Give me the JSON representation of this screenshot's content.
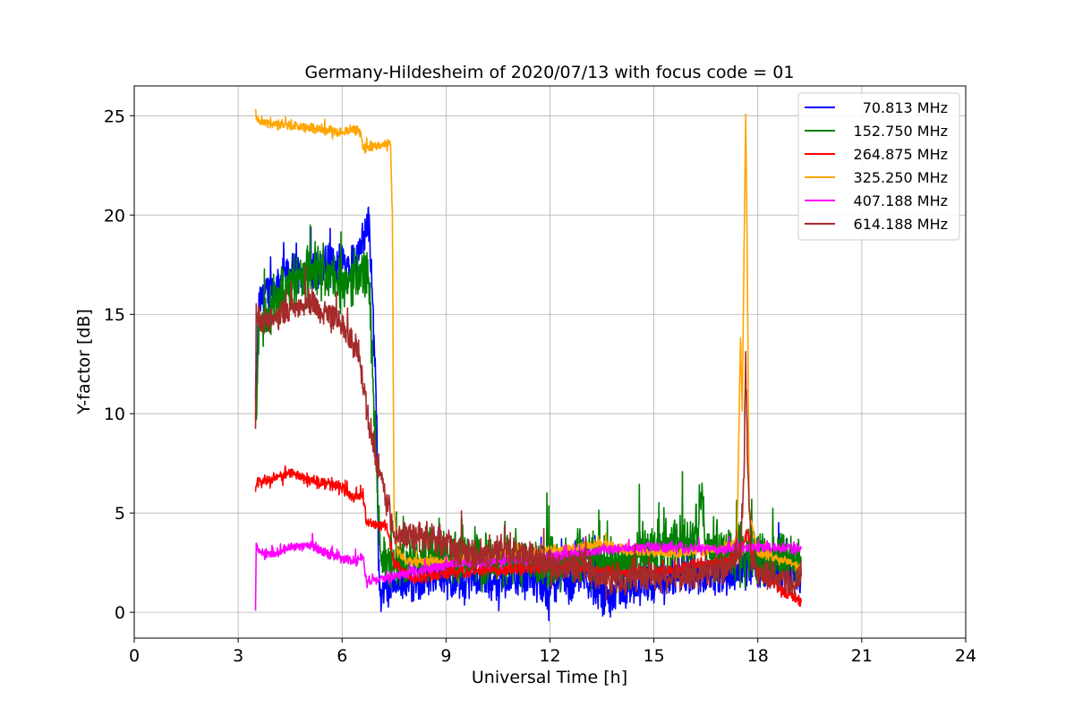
{
  "chart_data": {
    "type": "line",
    "title": "Germany-Hildesheim of 2020/07/13 with focus code = 01",
    "xlabel": "Universal Time [h]",
    "ylabel": "Y-factor [dB]",
    "xlim": [
      0,
      24
    ],
    "ylim": [
      -1.3,
      26.5
    ],
    "xticks": [
      0,
      3,
      6,
      9,
      12,
      15,
      18,
      21,
      24
    ],
    "yticks": [
      0,
      5,
      10,
      15,
      20,
      25
    ],
    "grid": true,
    "legend_position": "top-right",
    "series": [
      {
        "name": "70.813 MHz",
        "color": "#0000ff",
        "noise": 1.2,
        "points": [
          [
            3.5,
            10.5
          ],
          [
            3.6,
            15.5
          ],
          [
            4.0,
            16.5
          ],
          [
            4.5,
            17.0
          ],
          [
            5.0,
            17.2
          ],
          [
            5.5,
            17.5
          ],
          [
            6.0,
            17.5
          ],
          [
            6.5,
            18.0
          ],
          [
            6.75,
            20.0
          ],
          [
            6.9,
            15.0
          ],
          [
            7.0,
            10.0
          ],
          [
            7.05,
            2.0
          ],
          [
            7.1,
            1.0
          ],
          [
            7.5,
            1.2
          ],
          [
            8.0,
            1.5
          ],
          [
            8.5,
            1.8
          ],
          [
            9.0,
            1.8
          ],
          [
            9.5,
            1.5
          ],
          [
            10.0,
            1.5
          ],
          [
            10.5,
            1.6
          ],
          [
            11.0,
            1.7
          ],
          [
            11.5,
            1.6
          ],
          [
            12.0,
            1.3
          ],
          [
            12.5,
            1.5
          ],
          [
            13.0,
            1.8
          ],
          [
            13.3,
            1.2
          ],
          [
            13.5,
            0.8
          ],
          [
            14.0,
            1.2
          ],
          [
            15.0,
            1.5
          ],
          [
            16.0,
            1.8
          ],
          [
            17.0,
            2.0
          ],
          [
            18.0,
            2.2
          ],
          [
            19.0,
            2.0
          ],
          [
            19.25,
            1.8
          ]
        ]
      },
      {
        "name": "152.750 MHz",
        "color": "#008000",
        "noise": 1.6,
        "points": [
          [
            3.5,
            9.0
          ],
          [
            3.6,
            14.5
          ],
          [
            4.0,
            15.5
          ],
          [
            4.5,
            16.5
          ],
          [
            5.0,
            17.0
          ],
          [
            5.5,
            17.0
          ],
          [
            6.0,
            16.5
          ],
          [
            6.5,
            17.0
          ],
          [
            6.75,
            17.0
          ],
          [
            6.9,
            12.0
          ],
          [
            7.0,
            7.0
          ],
          [
            7.1,
            2.5
          ],
          [
            7.5,
            2.3
          ],
          [
            8.0,
            2.5
          ],
          [
            8.5,
            2.8
          ],
          [
            9.0,
            3.0
          ],
          [
            9.5,
            2.8
          ],
          [
            10.0,
            2.5
          ],
          [
            11.0,
            2.6
          ],
          [
            12.0,
            2.5
          ],
          [
            13.0,
            2.8
          ],
          [
            14.0,
            2.5
          ],
          [
            15.0,
            3.0
          ],
          [
            16.0,
            3.5
          ],
          [
            16.3,
            4.5
          ],
          [
            16.4,
            6.0
          ],
          [
            16.5,
            3.0
          ],
          [
            17.0,
            3.0
          ],
          [
            18.0,
            3.0
          ],
          [
            19.0,
            2.5
          ],
          [
            19.25,
            2.5
          ]
        ]
      },
      {
        "name": "264.875 MHz",
        "color": "#ff0000",
        "noise": 0.35,
        "points": [
          [
            3.5,
            6.2
          ],
          [
            3.6,
            6.6
          ],
          [
            4.0,
            6.7
          ],
          [
            4.5,
            7.0
          ],
          [
            5.0,
            6.7
          ],
          [
            5.5,
            6.5
          ],
          [
            6.0,
            6.3
          ],
          [
            6.3,
            5.7
          ],
          [
            6.6,
            6.0
          ],
          [
            6.7,
            4.6
          ],
          [
            7.0,
            4.4
          ],
          [
            7.3,
            4.2
          ],
          [
            7.5,
            2.5
          ],
          [
            8.0,
            1.7
          ],
          [
            8.5,
            1.8
          ],
          [
            9.0,
            2.0
          ],
          [
            9.5,
            2.0
          ],
          [
            10.0,
            2.1
          ],
          [
            11.0,
            2.2
          ],
          [
            12.0,
            2.3
          ],
          [
            13.0,
            2.2
          ],
          [
            14.0,
            2.0
          ],
          [
            15.0,
            2.0
          ],
          [
            16.0,
            2.3
          ],
          [
            17.0,
            2.5
          ],
          [
            17.5,
            3.0
          ],
          [
            17.7,
            4.0
          ],
          [
            18.0,
            2.0
          ],
          [
            19.0,
            0.8
          ],
          [
            19.25,
            0.5
          ]
        ]
      },
      {
        "name": "325.250 MHz",
        "color": "#ffa500",
        "noise": 0.3,
        "points": [
          [
            3.5,
            25.1
          ],
          [
            3.6,
            24.7
          ],
          [
            4.0,
            24.6
          ],
          [
            5.0,
            24.4
          ],
          [
            6.0,
            24.2
          ],
          [
            6.5,
            24.3
          ],
          [
            6.6,
            23.3
          ],
          [
            7.0,
            23.5
          ],
          [
            7.4,
            23.6
          ],
          [
            7.45,
            20.0
          ],
          [
            7.5,
            5.0
          ],
          [
            7.6,
            3.0
          ],
          [
            8.0,
            2.5
          ],
          [
            9.0,
            2.6
          ],
          [
            10.0,
            2.8
          ],
          [
            11.0,
            3.0
          ],
          [
            12.0,
            3.1
          ],
          [
            13.0,
            3.3
          ],
          [
            13.5,
            3.5
          ],
          [
            14.0,
            3.2
          ],
          [
            15.0,
            3.0
          ],
          [
            16.0,
            3.0
          ],
          [
            17.0,
            3.2
          ],
          [
            17.4,
            3.5
          ],
          [
            17.5,
            14.0
          ],
          [
            17.55,
            10.0
          ],
          [
            17.6,
            18.0
          ],
          [
            17.65,
            25.0
          ],
          [
            17.7,
            17.0
          ],
          [
            17.75,
            5.0
          ],
          [
            18.0,
            3.0
          ],
          [
            19.0,
            2.5
          ],
          [
            19.25,
            2.0
          ]
        ]
      },
      {
        "name": "407.188 MHz",
        "color": "#ff00ff",
        "noise": 0.3,
        "points": [
          [
            3.5,
            0.1
          ],
          [
            3.52,
            3.5
          ],
          [
            3.6,
            3.0
          ],
          [
            4.0,
            2.9
          ],
          [
            4.5,
            3.3
          ],
          [
            5.0,
            3.4
          ],
          [
            5.5,
            3.0
          ],
          [
            6.0,
            2.7
          ],
          [
            6.4,
            2.5
          ],
          [
            6.6,
            2.9
          ],
          [
            6.7,
            1.6
          ],
          [
            7.0,
            1.6
          ],
          [
            7.5,
            1.8
          ],
          [
            8.0,
            2.0
          ],
          [
            8.5,
            2.2
          ],
          [
            9.0,
            2.4
          ],
          [
            10.0,
            2.5
          ],
          [
            11.0,
            2.6
          ],
          [
            12.0,
            2.8
          ],
          [
            13.0,
            3.0
          ],
          [
            14.0,
            3.2
          ],
          [
            15.0,
            3.3
          ],
          [
            16.0,
            3.2
          ],
          [
            17.0,
            3.2
          ],
          [
            18.0,
            3.3
          ],
          [
            19.0,
            3.2
          ],
          [
            19.25,
            3.2
          ]
        ]
      },
      {
        "name": "614.188 MHz",
        "color": "#a52a2a",
        "noise": 0.9,
        "points": [
          [
            3.5,
            9.5
          ],
          [
            3.52,
            15.0
          ],
          [
            3.6,
            14.7
          ],
          [
            4.0,
            14.8
          ],
          [
            4.5,
            15.3
          ],
          [
            5.0,
            15.5
          ],
          [
            5.5,
            15.2
          ],
          [
            6.0,
            14.5
          ],
          [
            6.5,
            13.0
          ],
          [
            6.7,
            10.0
          ],
          [
            7.0,
            7.5
          ],
          [
            7.3,
            5.5
          ],
          [
            7.5,
            4.0
          ],
          [
            8.0,
            3.8
          ],
          [
            8.5,
            3.8
          ],
          [
            9.0,
            3.5
          ],
          [
            9.5,
            3.0
          ],
          [
            10.0,
            2.8
          ],
          [
            10.5,
            3.2
          ],
          [
            11.0,
            3.0
          ],
          [
            11.5,
            2.8
          ],
          [
            12.0,
            2.5
          ],
          [
            12.5,
            2.2
          ],
          [
            13.0,
            2.3
          ],
          [
            13.3,
            1.8
          ],
          [
            14.0,
            1.6
          ],
          [
            15.0,
            1.8
          ],
          [
            16.0,
            1.8
          ],
          [
            17.0,
            2.2
          ],
          [
            17.5,
            3.0
          ],
          [
            17.6,
            7.0
          ],
          [
            17.65,
            13.0
          ],
          [
            17.7,
            8.0
          ],
          [
            17.8,
            3.0
          ],
          [
            18.0,
            2.0
          ],
          [
            19.0,
            1.5
          ],
          [
            19.25,
            1.8
          ]
        ]
      }
    ]
  }
}
